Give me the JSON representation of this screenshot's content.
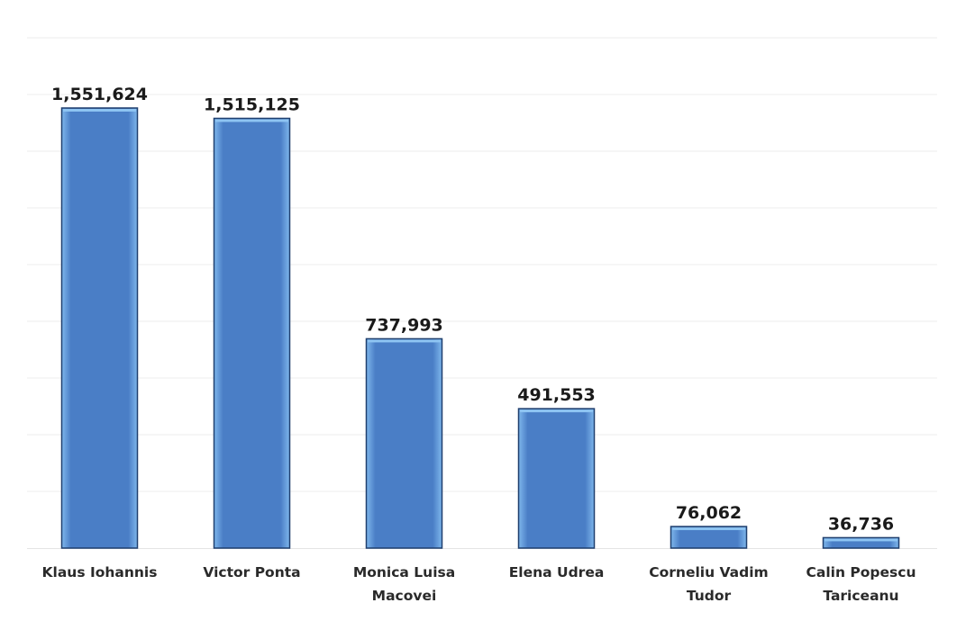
{
  "chart_data": {
    "type": "bar",
    "title": "",
    "xlabel": "",
    "ylabel": "",
    "ylim": [
      0,
      1900000
    ],
    "grid": true,
    "legend": "none",
    "categories": [
      [
        "Klaus Iohannis"
      ],
      [
        "Victor Ponta"
      ],
      [
        "Monica Luisa",
        "Macovei"
      ],
      [
        "Elena Udrea"
      ],
      [
        "Corneliu Vadim",
        "Tudor"
      ],
      [
        "Calin Popescu",
        "Tariceanu"
      ]
    ],
    "values": [
      1551624,
      1515125,
      737993,
      491553,
      76062,
      36736
    ],
    "data_labels": [
      "1,551,624",
      "1,515,125",
      "737,993",
      "491,553",
      "76,062",
      "36,736"
    ],
    "colors": {
      "bar_fill": "#4a7ec6",
      "bar_highlight": "#8ec4f2",
      "bar_edge": "#1f3f6e",
      "grid": "#ececec"
    }
  }
}
